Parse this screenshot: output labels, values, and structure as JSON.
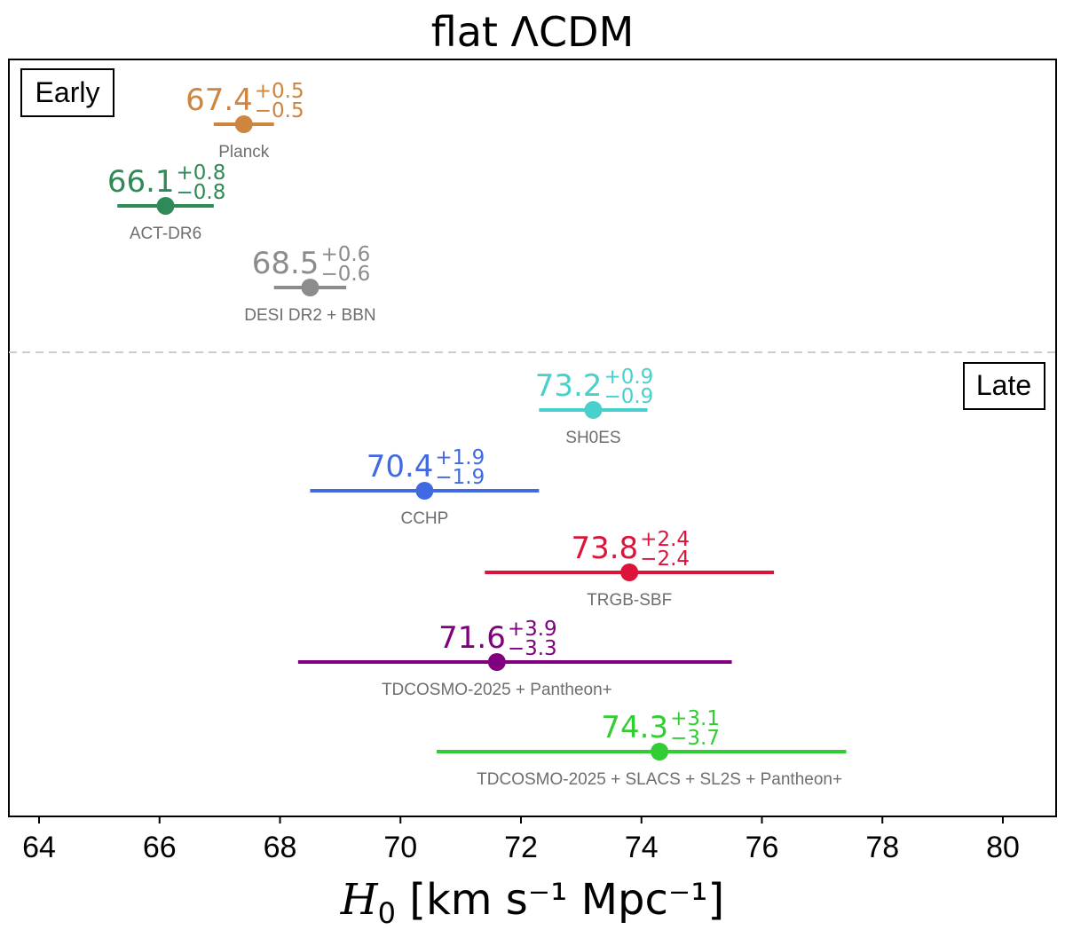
{
  "chart_data": {
    "type": "scatter",
    "title": "flat ΛCDM",
    "xlabel": {
      "symbol": "H",
      "subscript": "0",
      "units": " [km s⁻¹ Mpc⁻¹]"
    },
    "ylabel": "",
    "xlim": [
      63.6,
      80.9
    ],
    "xticks": [
      64,
      66,
      68,
      70,
      72,
      74,
      76,
      78,
      80
    ],
    "grid": false,
    "groups": [
      {
        "label": "Early",
        "placement": "top-left"
      },
      {
        "label": "Late",
        "placement": "right"
      }
    ],
    "points": [
      {
        "name": "Planck",
        "group": "Early",
        "value": 67.4,
        "plus": 0.5,
        "minus": 0.5,
        "value_text": "67.4",
        "plus_text": "+0.5",
        "minus_text": "−0.5",
        "color": "#cd853f"
      },
      {
        "name": "ACT-DR6",
        "group": "Early",
        "value": 66.1,
        "plus": 0.8,
        "minus": 0.8,
        "value_text": "66.1",
        "plus_text": "+0.8",
        "minus_text": "−0.8",
        "color": "#2e8b57"
      },
      {
        "name": "DESI DR2 + BBN",
        "group": "Early",
        "value": 68.5,
        "plus": 0.6,
        "minus": 0.6,
        "value_text": "68.5",
        "plus_text": "+0.6",
        "minus_text": "−0.6",
        "color": "#8c8c8c"
      },
      {
        "name": "SH0ES",
        "group": "Late",
        "value": 73.2,
        "plus": 0.9,
        "minus": 0.9,
        "value_text": "73.2",
        "plus_text": "+0.9",
        "minus_text": "−0.9",
        "color": "#48d1cc"
      },
      {
        "name": "CCHP",
        "group": "Late",
        "value": 70.4,
        "plus": 1.9,
        "minus": 1.9,
        "value_text": "70.4",
        "plus_text": "+1.9",
        "minus_text": "−1.9",
        "color": "#4169e1"
      },
      {
        "name": "TRGB-SBF",
        "group": "Late",
        "value": 73.8,
        "plus": 2.4,
        "minus": 2.4,
        "value_text": "73.8",
        "plus_text": "+2.4",
        "minus_text": "−2.4",
        "color": "#dc143c"
      },
      {
        "name": "TDCOSMO-2025 + Pantheon+",
        "group": "Late",
        "value": 71.6,
        "plus": 3.9,
        "minus": 3.3,
        "value_text": "71.6",
        "plus_text": "+3.9",
        "minus_text": "−3.3",
        "color": "#800080"
      },
      {
        "name": "TDCOSMO-2025 + SLACS + SL2S + Pantheon+",
        "group": "Late",
        "value": 74.3,
        "plus": 3.1,
        "minus": 3.7,
        "value_text": "74.3",
        "plus_text": "+3.1",
        "minus_text": "−3.7",
        "color": "#32cd32"
      }
    ]
  }
}
